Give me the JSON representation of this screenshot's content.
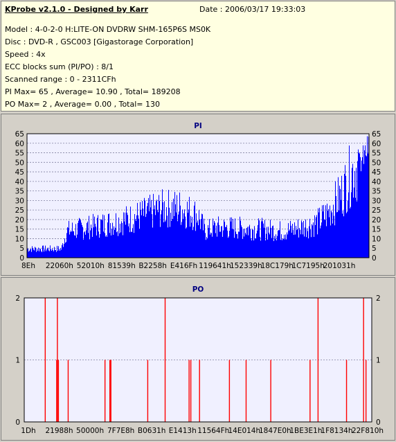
{
  "header": {
    "title": "KProbe v2.1.0 - Designed by Karr",
    "date": "Date : 2006/03/17 19:33:03",
    "model": "Model : 4-0-2-0 H:LITE-ON DVDRW SHM-165P6S MS0K",
    "disc": "Disc : DVD-R , GSC003 [Gigastorage Corporation]",
    "speed": "Speed : 4x",
    "ecc": "ECC blocks sum (PI/PO) : 8/1",
    "range": "Scanned range : 0 - 2311CFh",
    "pi_stats": "PI Max= 65 , Average= 10.90 , Total= 189208",
    "po_stats": "PO Max= 2 , Average= 0.00 , Total= 130"
  },
  "colors": {
    "pi_bar": "#0000ff",
    "po_bar": "#ff0000",
    "plot_bg": "#f0f0ff",
    "grid": "#8080a0",
    "title": "#000080"
  },
  "chart_data": [
    {
      "type": "bar",
      "title": "PI",
      "x_ticks": [
        "8Eh",
        "22060h",
        "52010h",
        "81539h",
        "B2258h",
        "E416Fh",
        "119641h",
        "152339h",
        "18C179h",
        "1C7195h",
        "201031h"
      ],
      "y_ticks": [
        0,
        5,
        10,
        15,
        20,
        25,
        30,
        35,
        40,
        45,
        50,
        55,
        60,
        65
      ],
      "ylim": [
        0,
        65
      ],
      "grid": true,
      "profile": {
        "x": [
          0,
          0.1,
          0.115,
          0.2,
          0.3,
          0.4,
          0.45,
          0.5,
          0.52,
          0.55,
          0.6,
          0.7,
          0.75,
          0.8,
          0.85,
          0.88,
          0.92,
          0.95,
          0.98,
          1.0
        ],
        "values": [
          5,
          5,
          15,
          18,
          22,
          28,
          28,
          24,
          15,
          17,
          17,
          16,
          15,
          17,
          20,
          25,
          36,
          48,
          55,
          63
        ]
      }
    },
    {
      "type": "bar",
      "title": "PO",
      "x_ticks": [
        "1Dh",
        "21988h",
        "50000h",
        "7F7E8h",
        "B0631h",
        "E1413h",
        "11564Fh",
        "14E014h",
        "1847E0h",
        "1BE3E1h",
        "1F8134h",
        "22F810h"
      ],
      "y_ticks": [
        0,
        1,
        2
      ],
      "ylim": [
        0,
        2
      ],
      "grid": true,
      "bars": [
        {
          "x": 0.059,
          "v": 2
        },
        {
          "x": 0.092,
          "v": 1
        },
        {
          "x": 0.094,
          "v": 2
        },
        {
          "x": 0.097,
          "v": 1
        },
        {
          "x": 0.125,
          "v": 1
        },
        {
          "x": 0.231,
          "v": 1
        },
        {
          "x": 0.245,
          "v": 1
        },
        {
          "x": 0.248,
          "v": 1
        },
        {
          "x": 0.354,
          "v": 1
        },
        {
          "x": 0.404,
          "v": 2
        },
        {
          "x": 0.473,
          "v": 1
        },
        {
          "x": 0.478,
          "v": 1
        },
        {
          "x": 0.503,
          "v": 1
        },
        {
          "x": 0.589,
          "v": 1
        },
        {
          "x": 0.637,
          "v": 1
        },
        {
          "x": 0.708,
          "v": 1
        },
        {
          "x": 0.821,
          "v": 1
        },
        {
          "x": 0.844,
          "v": 2
        },
        {
          "x": 0.926,
          "v": 1
        },
        {
          "x": 0.975,
          "v": 2
        },
        {
          "x": 0.982,
          "v": 1
        }
      ]
    }
  ]
}
